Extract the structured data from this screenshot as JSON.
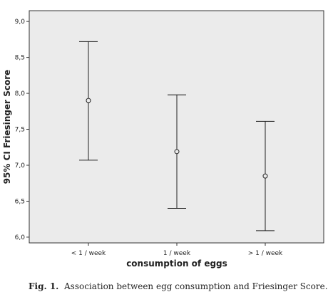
{
  "chart_data": {
    "type": "errorbar",
    "xlabel": "consumption of eggs",
    "ylabel": "95% CI Friesinger Score",
    "ylim": [
      5.92,
      9.15
    ],
    "y_ticks": [
      "6,0",
      "6,5",
      "7,0",
      "7,5",
      "8,0",
      "8,5",
      "9,0"
    ],
    "y_tick_values": [
      6.0,
      6.5,
      7.0,
      7.5,
      8.0,
      8.5,
      9.0
    ],
    "categories": [
      "< 1 / week",
      "1 / week",
      "> 1 / week"
    ],
    "means": [
      7.9,
      7.19,
      6.85
    ],
    "ci_lower": [
      7.07,
      6.4,
      6.09
    ],
    "ci_upper": [
      8.72,
      7.98,
      7.61
    ],
    "plot_background": "#ebebeb",
    "grid": false
  },
  "caption": {
    "label": "Fig. 1.",
    "text": "Association between egg consumption and Friesinger Score."
  }
}
